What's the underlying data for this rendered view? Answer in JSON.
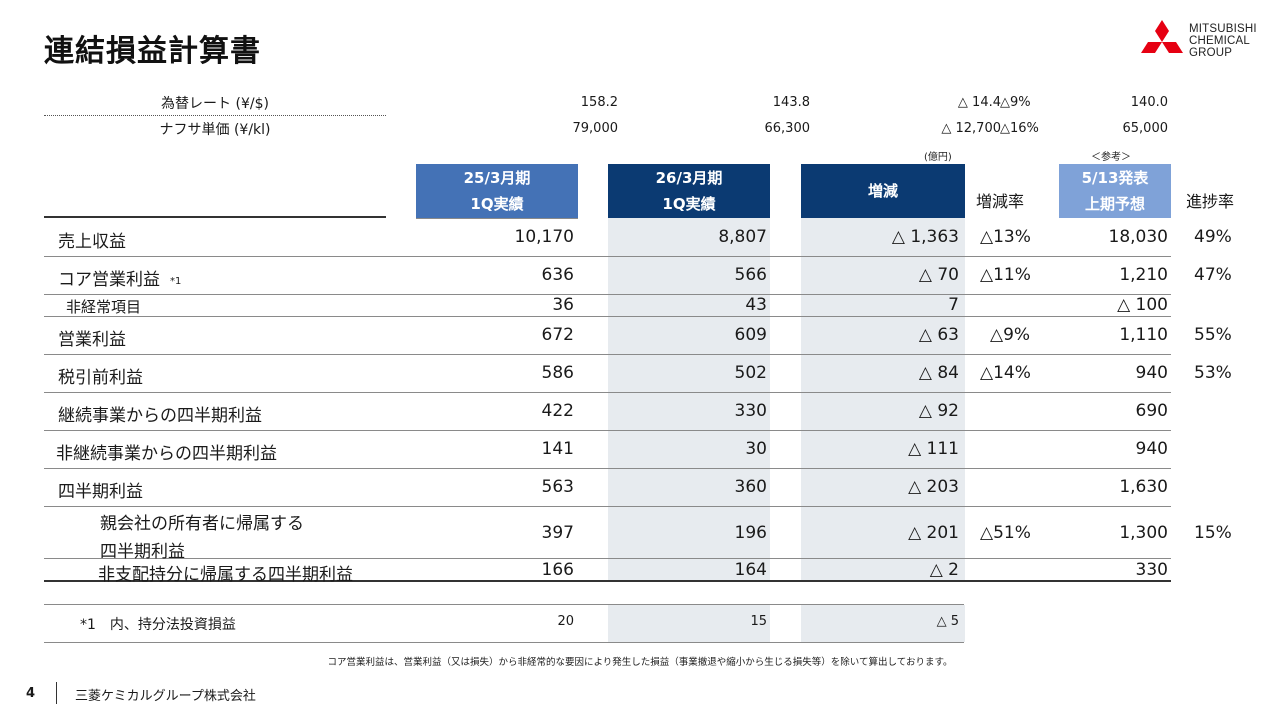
{
  "title": "連結損益計算書",
  "logo": {
    "line1": "MITSUBISHI",
    "line2": "CHEMICAL",
    "line3": "GROUP",
    "color": "#e60012"
  },
  "rates": [
    {
      "label": "為替レート (¥/$)",
      "v1": "158.2",
      "v2": "143.8",
      "diff": "△ 14.4",
      "pct": "△9%",
      "forecast": "140.0"
    },
    {
      "label": "ナフサ単価 (¥/kl)",
      "v1": "79,000",
      "v2": "66,300",
      "diff": "△ 12,700",
      "pct": "△16%",
      "forecast": "65,000"
    }
  ],
  "unit_label": "(億円)",
  "reference_label": "＜参考＞",
  "headers": {
    "col1_line1": "25/3月期",
    "col1_line2": "1Q実績",
    "col2_line1": "26/3月期",
    "col2_line2": "1Q実績",
    "col3": "増減",
    "col4": "増減率",
    "col5_line1": "5/13発表",
    "col5_line2": "上期予想",
    "col6": "進捗率"
  },
  "rows": [
    {
      "label": "売上収益",
      "v1": "10,170",
      "v2": "8,807",
      "diff": "△ 1,363",
      "pct": "△13%",
      "forecast": "18,030",
      "progress": "49%"
    },
    {
      "label": "コア営業利益",
      "note": "*1",
      "v1": "636",
      "v2": "566",
      "diff": "△ 70",
      "pct": "△11%",
      "forecast": "1,210",
      "progress": "47%"
    },
    {
      "label": "非経常項目",
      "v1": "36",
      "v2": "43",
      "diff": "7",
      "pct": "",
      "forecast": "△ 100",
      "progress": ""
    },
    {
      "label": "営業利益",
      "v1": "672",
      "v2": "609",
      "diff": "△ 63",
      "pct": "△9%",
      "forecast": "1,110",
      "progress": "55%"
    },
    {
      "label": "税引前利益",
      "v1": "586",
      "v2": "502",
      "diff": "△ 84",
      "pct": "△14%",
      "forecast": "940",
      "progress": "53%"
    },
    {
      "label": "継続事業からの四半期利益",
      "v1": "422",
      "v2": "330",
      "diff": "△ 92",
      "pct": "",
      "forecast": "690",
      "progress": ""
    },
    {
      "label": "非継続事業からの四半期利益",
      "v1": "141",
      "v2": "30",
      "diff": "△ 111",
      "pct": "",
      "forecast": "940",
      "progress": ""
    },
    {
      "label": "四半期利益",
      "v1": "563",
      "v2": "360",
      "diff": "△ 203",
      "pct": "",
      "forecast": "1,630",
      "progress": ""
    },
    {
      "label_line1": "親会社の所有者に帰属する",
      "label_line2": "四半期利益",
      "v1": "397",
      "v2": "196",
      "diff": "△ 201",
      "pct": "△51%",
      "forecast": "1,300",
      "progress": "15%"
    },
    {
      "label": "非支配持分に帰属する四半期利益",
      "v1": "166",
      "v2": "164",
      "diff": "△ 2",
      "pct": "",
      "forecast": "330",
      "progress": ""
    }
  ],
  "equity_row": {
    "label": "*1　内、持分法投資損益",
    "v1": "20",
    "v2": "15",
    "diff": "△ 5"
  },
  "footnote": "コア営業利益は、営業利益（又は損失）から非経常的な要因により発生した損益（事業撤退や縮小から生じる損失等）を除いて算出しております。",
  "page_number": "4",
  "company": "三菱ケミカルグループ株式会社"
}
